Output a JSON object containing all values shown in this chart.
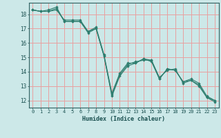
{
  "xlabel": "Humidex (Indice chaleur)",
  "ylabel": "",
  "bg_color": "#cce8e8",
  "grid_color": "#e8a0a0",
  "line_color": "#2e7d6e",
  "xlim": [
    -0.5,
    23.5
  ],
  "ylim": [
    11.5,
    18.8
  ],
  "xticks": [
    0,
    1,
    2,
    3,
    4,
    5,
    6,
    7,
    8,
    9,
    10,
    11,
    12,
    13,
    14,
    15,
    16,
    17,
    18,
    19,
    20,
    21,
    22,
    23
  ],
  "yticks": [
    12,
    13,
    14,
    15,
    16,
    17,
    18
  ],
  "series": [
    [
      18.3,
      18.2,
      18.3,
      18.5,
      17.5,
      17.5,
      17.5,
      16.7,
      17.0,
      15.1,
      12.3,
      13.7,
      14.4,
      14.6,
      14.9,
      14.7,
      13.5,
      14.2,
      14.1,
      13.3,
      13.5,
      13.2,
      12.3,
      12.0
    ],
    [
      18.3,
      18.2,
      18.2,
      18.4,
      17.5,
      17.5,
      17.5,
      16.8,
      17.0,
      15.1,
      12.4,
      13.8,
      14.5,
      14.7,
      14.8,
      14.8,
      13.6,
      14.1,
      14.2,
      13.2,
      13.4,
      13.1,
      12.2,
      12.0
    ],
    [
      18.3,
      18.2,
      18.2,
      18.3,
      17.6,
      17.6,
      17.6,
      16.8,
      17.1,
      15.2,
      12.5,
      13.9,
      14.6,
      14.6,
      14.9,
      14.8,
      13.5,
      14.2,
      14.1,
      13.3,
      13.4,
      13.0,
      12.2,
      11.9
    ]
  ]
}
